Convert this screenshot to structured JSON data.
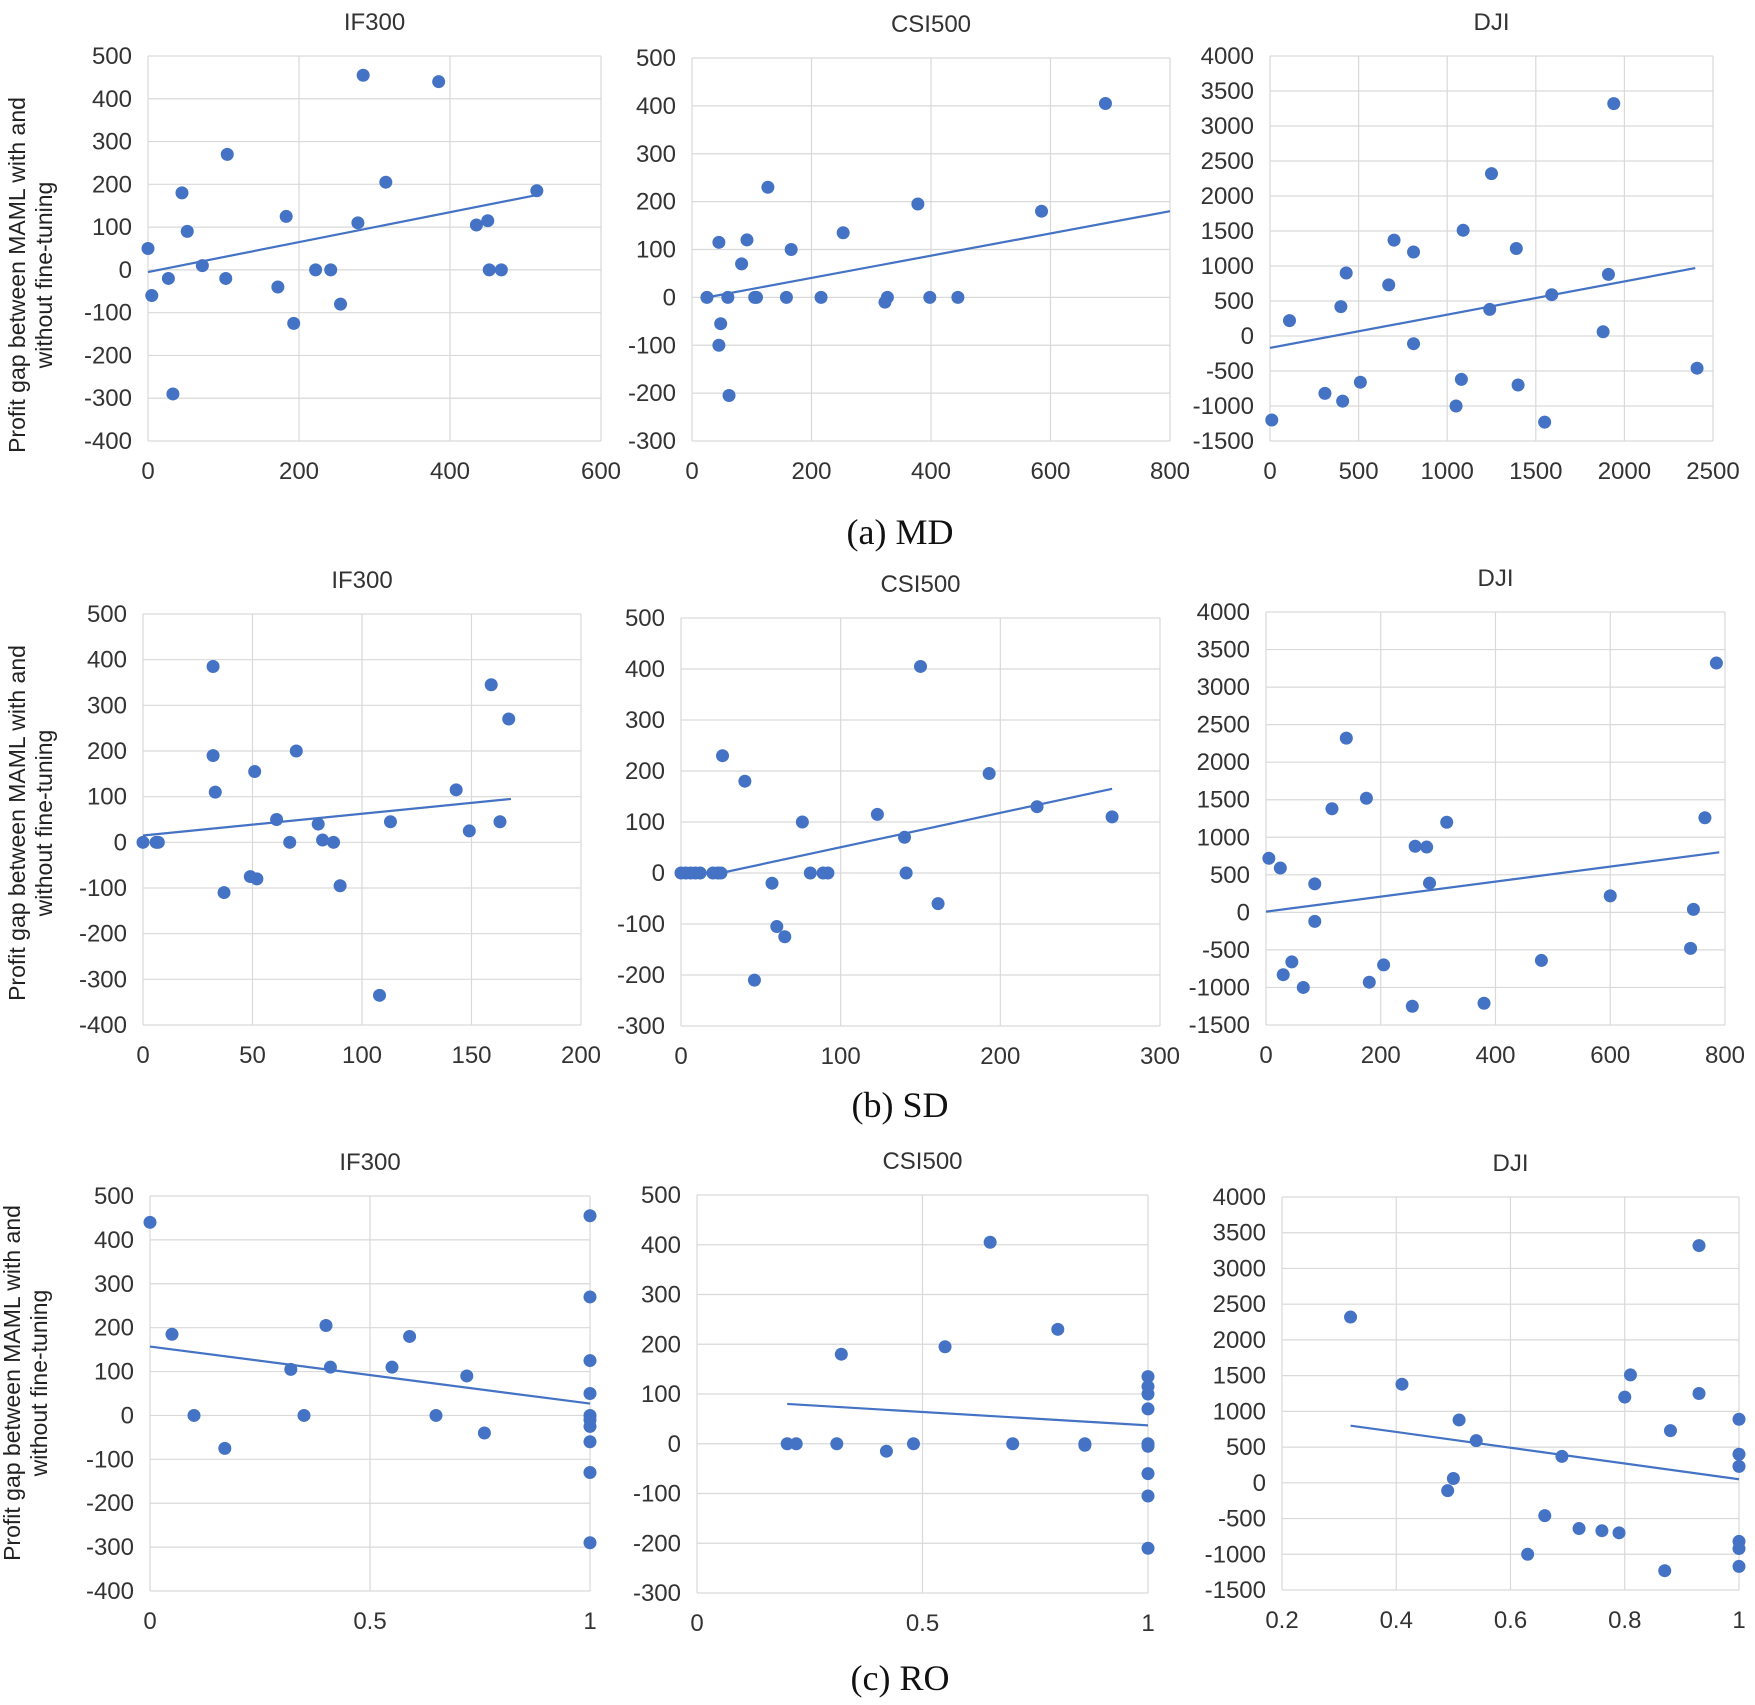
{
  "figure": {
    "y_axis_label_line1": "Profit gap between MAML with and",
    "y_axis_label_line2": "without fine-tuning",
    "captions": [
      "(a) MD",
      "(b) SD",
      "(c) RO"
    ],
    "marker_color": "#4472C4",
    "trend_color": "#4472C4",
    "grid_color": "#d9d9d9"
  },
  "chart_data": [
    {
      "type": "scatter",
      "row": "MD",
      "title": "IF300",
      "xlim": [
        0,
        600
      ],
      "xticks": [
        0,
        200,
        400,
        600
      ],
      "ylim": [
        -400,
        500
      ],
      "yticks": [
        -400,
        -300,
        -200,
        -100,
        0,
        100,
        200,
        300,
        400,
        500
      ],
      "trendline": [
        [
          0,
          -5
        ],
        [
          515,
          175
        ]
      ],
      "points": [
        [
          0,
          50
        ],
        [
          5,
          -60
        ],
        [
          27,
          -20
        ],
        [
          33,
          -290
        ],
        [
          45,
          180
        ],
        [
          52,
          90
        ],
        [
          72,
          10
        ],
        [
          103,
          -20
        ],
        [
          105,
          270
        ],
        [
          172,
          -40
        ],
        [
          183,
          125
        ],
        [
          193,
          -125
        ],
        [
          222,
          0
        ],
        [
          242,
          0
        ],
        [
          255,
          -80
        ],
        [
          278,
          110
        ],
        [
          285,
          455
        ],
        [
          315,
          205
        ],
        [
          385,
          440
        ],
        [
          435,
          105
        ],
        [
          450,
          115
        ],
        [
          452,
          0
        ],
        [
          468,
          0
        ],
        [
          515,
          185
        ]
      ]
    },
    {
      "type": "scatter",
      "row": "MD",
      "title": "CSI500",
      "xlim": [
        0,
        800
      ],
      "xticks": [
        0,
        200,
        400,
        600,
        800
      ],
      "ylim": [
        -300,
        500
      ],
      "yticks": [
        -300,
        -200,
        -100,
        0,
        100,
        200,
        300,
        400,
        500
      ],
      "trendline": [
        [
          25,
          0
        ],
        [
          800,
          180
        ]
      ],
      "points": [
        [
          25,
          0
        ],
        [
          45,
          115
        ],
        [
          45,
          -100
        ],
        [
          48,
          -55
        ],
        [
          60,
          0
        ],
        [
          62,
          -205
        ],
        [
          83,
          70
        ],
        [
          92,
          120
        ],
        [
          105,
          0
        ],
        [
          108,
          0
        ],
        [
          127,
          230
        ],
        [
          158,
          0
        ],
        [
          166,
          100
        ],
        [
          216,
          0
        ],
        [
          253,
          135
        ],
        [
          323,
          -10
        ],
        [
          327,
          0
        ],
        [
          378,
          195
        ],
        [
          398,
          0
        ],
        [
          445,
          0
        ],
        [
          585,
          180
        ],
        [
          692,
          405
        ]
      ]
    },
    {
      "type": "scatter",
      "row": "MD",
      "title": "DJI",
      "xlim": [
        0,
        2500
      ],
      "xticks": [
        0,
        500,
        1000,
        1500,
        2000,
        2500
      ],
      "ylim": [
        -1500,
        4000
      ],
      "yticks": [
        -1500,
        -1000,
        -500,
        0,
        500,
        1000,
        1500,
        2000,
        2500,
        3000,
        3500,
        4000
      ],
      "trendline": [
        [
          0,
          -170
        ],
        [
          2400,
          970
        ]
      ],
      "points": [
        [
          10,
          -1200
        ],
        [
          110,
          220
        ],
        [
          310,
          -820
        ],
        [
          400,
          420
        ],
        [
          410,
          -930
        ],
        [
          430,
          900
        ],
        [
          510,
          -660
        ],
        [
          670,
          730
        ],
        [
          700,
          1370
        ],
        [
          810,
          1200
        ],
        [
          810,
          -110
        ],
        [
          1050,
          -1000
        ],
        [
          1080,
          -620
        ],
        [
          1090,
          1510
        ],
        [
          1240,
          380
        ],
        [
          1250,
          2320
        ],
        [
          1390,
          1250
        ],
        [
          1400,
          -700
        ],
        [
          1550,
          -1230
        ],
        [
          1590,
          590
        ],
        [
          1880,
          60
        ],
        [
          1910,
          880
        ],
        [
          1940,
          3320
        ],
        [
          2410,
          -460
        ]
      ]
    },
    {
      "type": "scatter",
      "row": "SD",
      "title": "IF300",
      "xlim": [
        0,
        200
      ],
      "xticks": [
        0,
        50,
        100,
        150,
        200
      ],
      "ylim": [
        -400,
        500
      ],
      "yticks": [
        -400,
        -300,
        -200,
        -100,
        0,
        100,
        200,
        300,
        400,
        500
      ],
      "trendline": [
        [
          0,
          15
        ],
        [
          168,
          95
        ]
      ],
      "points": [
        [
          0,
          0
        ],
        [
          6,
          0
        ],
        [
          7,
          0
        ],
        [
          32,
          385
        ],
        [
          32,
          190
        ],
        [
          33,
          110
        ],
        [
          37,
          -110
        ],
        [
          49,
          -75
        ],
        [
          51,
          155
        ],
        [
          52,
          -80
        ],
        [
          61,
          50
        ],
        [
          67,
          0
        ],
        [
          70,
          200
        ],
        [
          80,
          40
        ],
        [
          82,
          5
        ],
        [
          87,
          0
        ],
        [
          90,
          -95
        ],
        [
          108,
          -335
        ],
        [
          113,
          45
        ],
        [
          143,
          115
        ],
        [
          149,
          25
        ],
        [
          159,
          345
        ],
        [
          163,
          45
        ],
        [
          167,
          270
        ]
      ]
    },
    {
      "type": "scatter",
      "row": "SD",
      "title": "CSI500",
      "xlim": [
        0,
        300
      ],
      "xticks": [
        0,
        100,
        200,
        300
      ],
      "ylim": [
        -300,
        500
      ],
      "yticks": [
        -300,
        -200,
        -100,
        0,
        100,
        200,
        300,
        400,
        500
      ],
      "trendline": [
        [
          25,
          0
        ],
        [
          270,
          165
        ]
      ],
      "points": [
        [
          0,
          0
        ],
        [
          3,
          0
        ],
        [
          6,
          0
        ],
        [
          9,
          0
        ],
        [
          12,
          0
        ],
        [
          20,
          0
        ],
        [
          23,
          0
        ],
        [
          25,
          0
        ],
        [
          26,
          230
        ],
        [
          40,
          180
        ],
        [
          46,
          -210
        ],
        [
          57,
          -20
        ],
        [
          60,
          -105
        ],
        [
          65,
          -125
        ],
        [
          76,
          100
        ],
        [
          81,
          0
        ],
        [
          89,
          0
        ],
        [
          92,
          0
        ],
        [
          123,
          115
        ],
        [
          140,
          70
        ],
        [
          141,
          0
        ],
        [
          150,
          405
        ],
        [
          161,
          -60
        ],
        [
          193,
          195
        ],
        [
          223,
          130
        ],
        [
          270,
          110
        ]
      ]
    },
    {
      "type": "scatter",
      "row": "SD",
      "title": "DJI",
      "xlim": [
        0,
        800
      ],
      "xticks": [
        0,
        200,
        400,
        600,
        800
      ],
      "ylim": [
        -1500,
        4000
      ],
      "yticks": [
        -1500,
        -1000,
        -500,
        0,
        500,
        1000,
        1500,
        2000,
        2500,
        3000,
        3500,
        4000
      ],
      "trendline": [
        [
          0,
          10
        ],
        [
          790,
          800
        ]
      ],
      "points": [
        [
          5,
          720
        ],
        [
          25,
          590
        ],
        [
          30,
          -830
        ],
        [
          45,
          -660
        ],
        [
          65,
          -1000
        ],
        [
          85,
          380
        ],
        [
          85,
          -120
        ],
        [
          115,
          1380
        ],
        [
          140,
          2320
        ],
        [
          175,
          1520
        ],
        [
          180,
          -930
        ],
        [
          205,
          -700
        ],
        [
          255,
          -1250
        ],
        [
          260,
          880
        ],
        [
          280,
          870
        ],
        [
          285,
          390
        ],
        [
          315,
          1200
        ],
        [
          380,
          -1210
        ],
        [
          480,
          -640
        ],
        [
          600,
          220
        ],
        [
          740,
          -480
        ],
        [
          745,
          40
        ],
        [
          765,
          1260
        ],
        [
          785,
          3320
        ]
      ]
    },
    {
      "type": "scatter",
      "row": "RO",
      "title": "IF300",
      "xlim": [
        0,
        1
      ],
      "xticks": [
        0,
        0.5,
        1
      ],
      "ylim": [
        -400,
        500
      ],
      "yticks": [
        -400,
        -300,
        -200,
        -100,
        0,
        100,
        200,
        300,
        400,
        500
      ],
      "trendline": [
        [
          0,
          157
        ],
        [
          1,
          27
        ]
      ],
      "points": [
        [
          0,
          440
        ],
        [
          0.05,
          185
        ],
        [
          0.1,
          0
        ],
        [
          0.17,
          -75
        ],
        [
          0.32,
          105
        ],
        [
          0.35,
          0
        ],
        [
          0.4,
          205
        ],
        [
          0.41,
          110
        ],
        [
          0.55,
          110
        ],
        [
          0.59,
          180
        ],
        [
          0.65,
          0
        ],
        [
          0.72,
          90
        ],
        [
          0.76,
          -40
        ],
        [
          1,
          455
        ],
        [
          1,
          270
        ],
        [
          1,
          125
        ],
        [
          1,
          50
        ],
        [
          1,
          0
        ],
        [
          1,
          -10
        ],
        [
          1,
          -25
        ],
        [
          1,
          -60
        ],
        [
          1,
          -130
        ],
        [
          1,
          -290
        ]
      ]
    },
    {
      "type": "scatter",
      "row": "RO",
      "title": "CSI500",
      "xlim": [
        0,
        1
      ],
      "xticks": [
        0,
        0.5,
        1
      ],
      "ylim": [
        -300,
        500
      ],
      "yticks": [
        -300,
        -200,
        -100,
        0,
        100,
        200,
        300,
        400,
        500
      ],
      "trendline": [
        [
          0.2,
          80
        ],
        [
          1,
          37
        ]
      ],
      "points": [
        [
          0.2,
          0
        ],
        [
          0.22,
          0
        ],
        [
          0.31,
          0
        ],
        [
          0.32,
          180
        ],
        [
          0.42,
          -15
        ],
        [
          0.48,
          0
        ],
        [
          0.55,
          195
        ],
        [
          0.65,
          405
        ],
        [
          0.7,
          0
        ],
        [
          0.8,
          230
        ],
        [
          0.86,
          0
        ],
        [
          0.86,
          -3
        ],
        [
          1,
          135
        ],
        [
          1,
          115
        ],
        [
          1,
          100
        ],
        [
          1,
          70
        ],
        [
          1,
          0
        ],
        [
          1,
          -5
        ],
        [
          1,
          -60
        ],
        [
          1,
          -105
        ],
        [
          1,
          -210
        ]
      ]
    },
    {
      "type": "scatter",
      "row": "RO",
      "title": "DJI",
      "xlim": [
        0.2,
        1
      ],
      "xticks": [
        0.2,
        0.4,
        0.6,
        0.8,
        1
      ],
      "ylim": [
        -1500,
        4000
      ],
      "yticks": [
        -1500,
        -1000,
        -500,
        0,
        500,
        1000,
        1500,
        2000,
        2500,
        3000,
        3500,
        4000
      ],
      "trendline": [
        [
          0.32,
          800
        ],
        [
          1,
          50
        ]
      ],
      "points": [
        [
          0.32,
          2320
        ],
        [
          0.41,
          1380
        ],
        [
          0.49,
          -110
        ],
        [
          0.5,
          60
        ],
        [
          0.51,
          880
        ],
        [
          0.54,
          590
        ],
        [
          0.63,
          -1000
        ],
        [
          0.66,
          -460
        ],
        [
          0.69,
          370
        ],
        [
          0.72,
          -640
        ],
        [
          0.76,
          -670
        ],
        [
          0.79,
          -700
        ],
        [
          0.8,
          1200
        ],
        [
          0.81,
          1510
        ],
        [
          0.87,
          -1230
        ],
        [
          0.88,
          730
        ],
        [
          0.93,
          1250
        ],
        [
          0.93,
          3320
        ],
        [
          1,
          890
        ],
        [
          1,
          400
        ],
        [
          1,
          230
        ],
        [
          1,
          -820
        ],
        [
          1,
          -920
        ],
        [
          1,
          -1170
        ]
      ]
    }
  ]
}
